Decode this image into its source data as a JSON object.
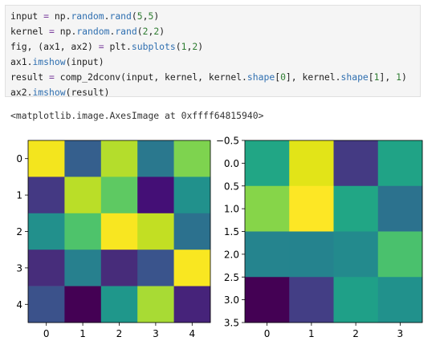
{
  "code_cell": {
    "lines": [
      [
        {
          "t": "input ",
          "c": "kw"
        },
        {
          "t": "=",
          "c": "op"
        },
        {
          "t": " np.",
          "c": "mod"
        },
        {
          "t": "random",
          "c": "fn"
        },
        {
          "t": ".",
          "c": "mod"
        },
        {
          "t": "rand",
          "c": "fn"
        },
        {
          "t": "(",
          "c": "mod"
        },
        {
          "t": "5",
          "c": "num"
        },
        {
          "t": ",",
          "c": "mod"
        },
        {
          "t": "5",
          "c": "num"
        },
        {
          "t": ")",
          "c": "mod"
        }
      ],
      [
        {
          "t": "kernel ",
          "c": "kw"
        },
        {
          "t": "=",
          "c": "op"
        },
        {
          "t": " np.",
          "c": "mod"
        },
        {
          "t": "random",
          "c": "fn"
        },
        {
          "t": ".",
          "c": "mod"
        },
        {
          "t": "rand",
          "c": "fn"
        },
        {
          "t": "(",
          "c": "mod"
        },
        {
          "t": "2",
          "c": "num"
        },
        {
          "t": ",",
          "c": "mod"
        },
        {
          "t": "2",
          "c": "num"
        },
        {
          "t": ")",
          "c": "mod"
        }
      ],
      [
        {
          "t": "fig, (ax1, ax2) ",
          "c": "kw"
        },
        {
          "t": "=",
          "c": "op"
        },
        {
          "t": " plt.",
          "c": "mod"
        },
        {
          "t": "subplots",
          "c": "fn"
        },
        {
          "t": "(",
          "c": "mod"
        },
        {
          "t": "1",
          "c": "num"
        },
        {
          "t": ",",
          "c": "mod"
        },
        {
          "t": "2",
          "c": "num"
        },
        {
          "t": ")",
          "c": "mod"
        }
      ],
      [
        {
          "t": "ax1.",
          "c": "kw"
        },
        {
          "t": "imshow",
          "c": "fn"
        },
        {
          "t": "(input)",
          "c": "mod"
        }
      ],
      [
        {
          "t": "result ",
          "c": "kw"
        },
        {
          "t": "=",
          "c": "op"
        },
        {
          "t": " comp_2dconv(input, kernel, kernel.",
          "c": "mod"
        },
        {
          "t": "shape",
          "c": "fn"
        },
        {
          "t": "[",
          "c": "mod"
        },
        {
          "t": "0",
          "c": "num"
        },
        {
          "t": "], kernel.",
          "c": "mod"
        },
        {
          "t": "shape",
          "c": "fn"
        },
        {
          "t": "[",
          "c": "mod"
        },
        {
          "t": "1",
          "c": "num"
        },
        {
          "t": "], ",
          "c": "mod"
        },
        {
          "t": "1",
          "c": "num"
        },
        {
          "t": ")",
          "c": "mod"
        }
      ],
      [
        {
          "t": "ax2.",
          "c": "kw"
        },
        {
          "t": "imshow",
          "c": "fn"
        },
        {
          "t": "(result)",
          "c": "mod"
        }
      ]
    ]
  },
  "output": {
    "text": "<matplotlib.image.AxesImage at 0xffff64815940>"
  },
  "colors": {
    "code_bg": "#f5f5f5",
    "fn": "#2f6fb0",
    "num": "#2f7d32",
    "op": "#7a3e9d"
  },
  "chart_data": [
    {
      "type": "heatmap",
      "colormap": "viridis",
      "rows": 5,
      "cols": 5,
      "x_ticks": [
        "0",
        "1",
        "2",
        "3",
        "4"
      ],
      "y_ticks": [
        "0",
        "1",
        "2",
        "3",
        "4"
      ],
      "colors": [
        [
          "#f3e51e",
          "#355f8d",
          "#b4dd2c",
          "#2a788e",
          "#7ed34f"
        ],
        [
          "#443983",
          "#bade28",
          "#5ec962",
          "#440f76",
          "#21918c"
        ],
        [
          "#22908c",
          "#4ec36b",
          "#f8e621",
          "#c2df23",
          "#2c718e"
        ],
        [
          "#472d7b",
          "#27808e",
          "#472c7a",
          "#3a548c",
          "#f9e721"
        ],
        [
          "#3b528b",
          "#440154",
          "#1f978b",
          "#a8db34",
          "#46237a"
        ]
      ]
    },
    {
      "type": "heatmap",
      "colormap": "viridis",
      "rows": 4,
      "cols": 4,
      "x_ticks": [
        "0",
        "1",
        "2",
        "3"
      ],
      "y_ticks": [
        "−0.5",
        "0.0",
        "0.5",
        "1.0",
        "1.5",
        "2.0",
        "2.5",
        "3.0",
        "3.5"
      ],
      "colors": [
        [
          "#21a685",
          "#e2e418",
          "#443a83",
          "#20a386"
        ],
        [
          "#86d549",
          "#fde725",
          "#21a685",
          "#2c728e"
        ],
        [
          "#25848e",
          "#25838e",
          "#238a8d",
          "#4ac16d"
        ],
        [
          "#440154",
          "#433e85",
          "#1fa088",
          "#21918c"
        ]
      ]
    }
  ]
}
